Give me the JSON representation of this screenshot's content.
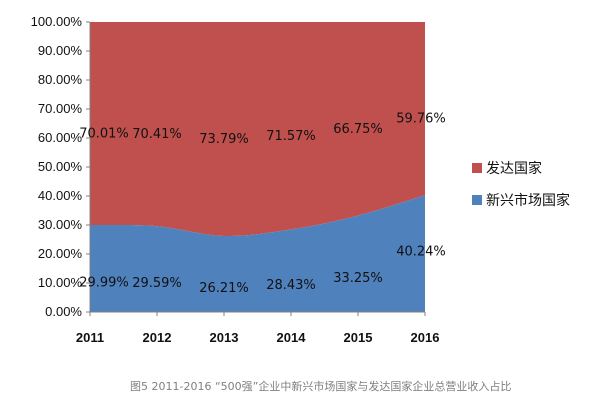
{
  "chart_data": {
    "type": "area",
    "stacked": true,
    "categories": [
      "2011",
      "2012",
      "2013",
      "2014",
      "2015",
      "2016"
    ],
    "series": [
      {
        "name": "新兴市场国家",
        "values": [
          29.99,
          29.59,
          26.21,
          28.43,
          33.25,
          40.24
        ],
        "labels": [
          "29.99%",
          "29.59%",
          "26.21%",
          "28.43%",
          "33.25%",
          "40.24%"
        ],
        "color": "#4f81bd"
      },
      {
        "name": "发达国家",
        "values": [
          70.01,
          70.41,
          73.79,
          71.57,
          66.75,
          59.76
        ],
        "labels": [
          "70.01%",
          "70.41%",
          "73.79%",
          "71.57%",
          "66.75%",
          "59.76%"
        ],
        "color": "#c0504d"
      }
    ],
    "yticks": [
      "0.00%",
      "10.00%",
      "20.00%",
      "30.00%",
      "40.00%",
      "50.00%",
      "60.00%",
      "70.00%",
      "80.00%",
      "90.00%",
      "100.00%"
    ],
    "ylim": [
      0,
      100
    ],
    "legend_position": "right",
    "grid": false
  },
  "caption": "图5  2011-2016 “500强”企业中新兴市场国家与发达国家企业总营业收入占比"
}
